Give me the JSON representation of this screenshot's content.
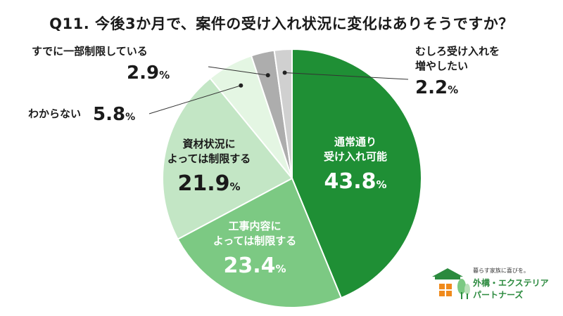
{
  "chart_data": {
    "type": "pie",
    "title": "Q11. 今後3か月で、案件の受け入れ状況に変化はありそうですか？",
    "unit": "%",
    "slices": [
      {
        "label": "通常通り受け入れ可能",
        "line1": "通常通り",
        "line2": "受け入れ可能",
        "value": 43.8,
        "color": "#1f8f35",
        "text_color": "#ffffff"
      },
      {
        "label": "工事内容によっては制限する",
        "line1": "工事内容に",
        "line2": "よっては制限する",
        "value": 23.4,
        "color": "#7cc983",
        "text_color": "#ffffff"
      },
      {
        "label": "資材状況によっては制限する",
        "line1": "資材状況に",
        "line2": "よっては制限する",
        "value": 21.9,
        "color": "#c3e6c5",
        "text_color": "#1a1a1a"
      },
      {
        "label": "わからない",
        "line1": "わからない",
        "line2": "",
        "value": 5.8,
        "color": "#e4f6e3",
        "text_color": "#1a1a1a"
      },
      {
        "label": "すでに一部制限している",
        "line1": "すでに一部制限している",
        "line2": "",
        "value": 2.9,
        "color": "#adadad",
        "text_color": "#1a1a1a"
      },
      {
        "label": "むしろ受け入れを増やしたい",
        "line1": "むしろ受け入れを",
        "line2": "増やしたい",
        "value": 2.2,
        "color": "#d0d0d0",
        "text_color": "#1a1a1a"
      }
    ]
  },
  "logo": {
    "tagline": "暮らす家族に喜びを。",
    "name_line1": "外構・エクステリア",
    "name_line2": "パートナーズ",
    "brand_color": "#2b8a3e"
  }
}
